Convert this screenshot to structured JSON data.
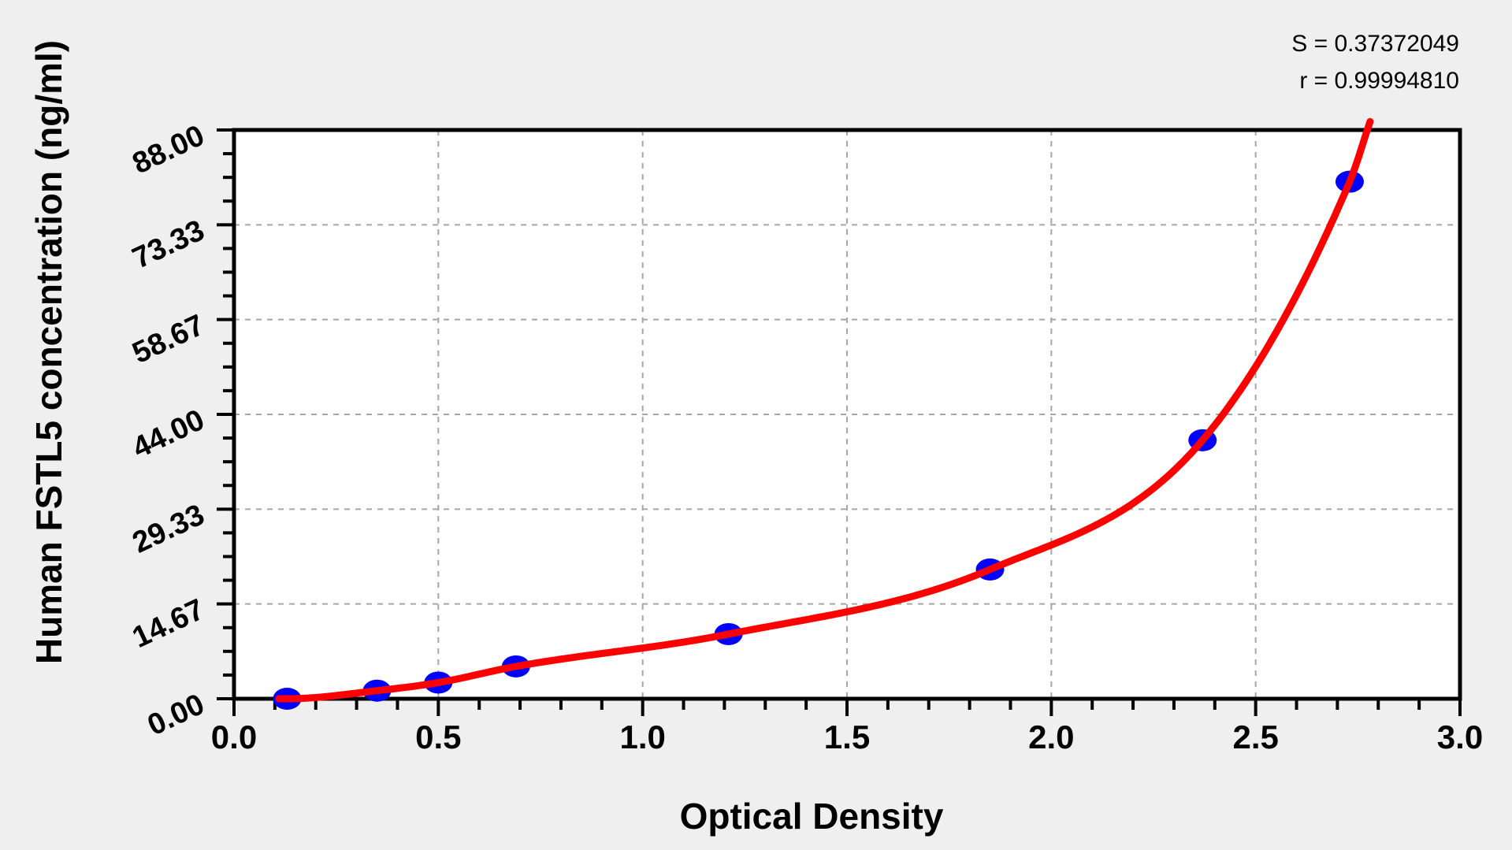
{
  "stats": {
    "s_line": "S = 0.37372049",
    "r_line": "r = 0.99994810"
  },
  "chart_data": {
    "type": "scatter",
    "title": "",
    "xlabel": "Optical Density",
    "ylabel": "Human FSTL5 concentration (ng/ml)",
    "xlim": [
      0.0,
      3.0
    ],
    "ylim": [
      0.0,
      88.0
    ],
    "x_ticks": {
      "major_values": [
        0.0,
        0.5,
        1.0,
        1.5,
        2.0,
        2.5,
        3.0
      ],
      "major_labels": [
        "0.0",
        "0.5",
        "1.0",
        "1.5",
        "2.0",
        "2.5",
        "3.0"
      ],
      "minor_step": 0.1
    },
    "y_ticks": {
      "major_values": [
        0.0,
        14.67,
        29.33,
        44.0,
        58.67,
        73.33,
        88.0
      ],
      "major_labels": [
        "0.00",
        "14.67",
        "29.33",
        "44.00",
        "58.67",
        "73.33",
        "88.00"
      ],
      "minor_step": 3.66667
    },
    "grid": {
      "show_major": true,
      "style": "dashed",
      "color": "#a6a6a6"
    },
    "legend": "none",
    "series": [
      {
        "name": "standard-points",
        "type": "scatter",
        "color": "#0000ff",
        "x": [
          0.13,
          0.35,
          0.5,
          0.69,
          1.21,
          1.85,
          2.37,
          2.73
        ],
        "y": [
          0.0,
          1.25,
          2.5,
          5.0,
          10.0,
          20.0,
          40.0,
          80.0
        ]
      },
      {
        "name": "fitted-curve",
        "type": "line",
        "color": "#ff0000",
        "x_start": 0.11,
        "x_end": 2.78,
        "y_end": 89.3,
        "S": 0.37372049,
        "r": 0.9999481
      }
    ]
  },
  "colors": {
    "background": "#efefef",
    "plot_background": "#ffffff",
    "axis": "#000000",
    "grid": "#a6a6a6",
    "point": "#0000ff",
    "curve": "#ff0000",
    "text": "#000000"
  }
}
